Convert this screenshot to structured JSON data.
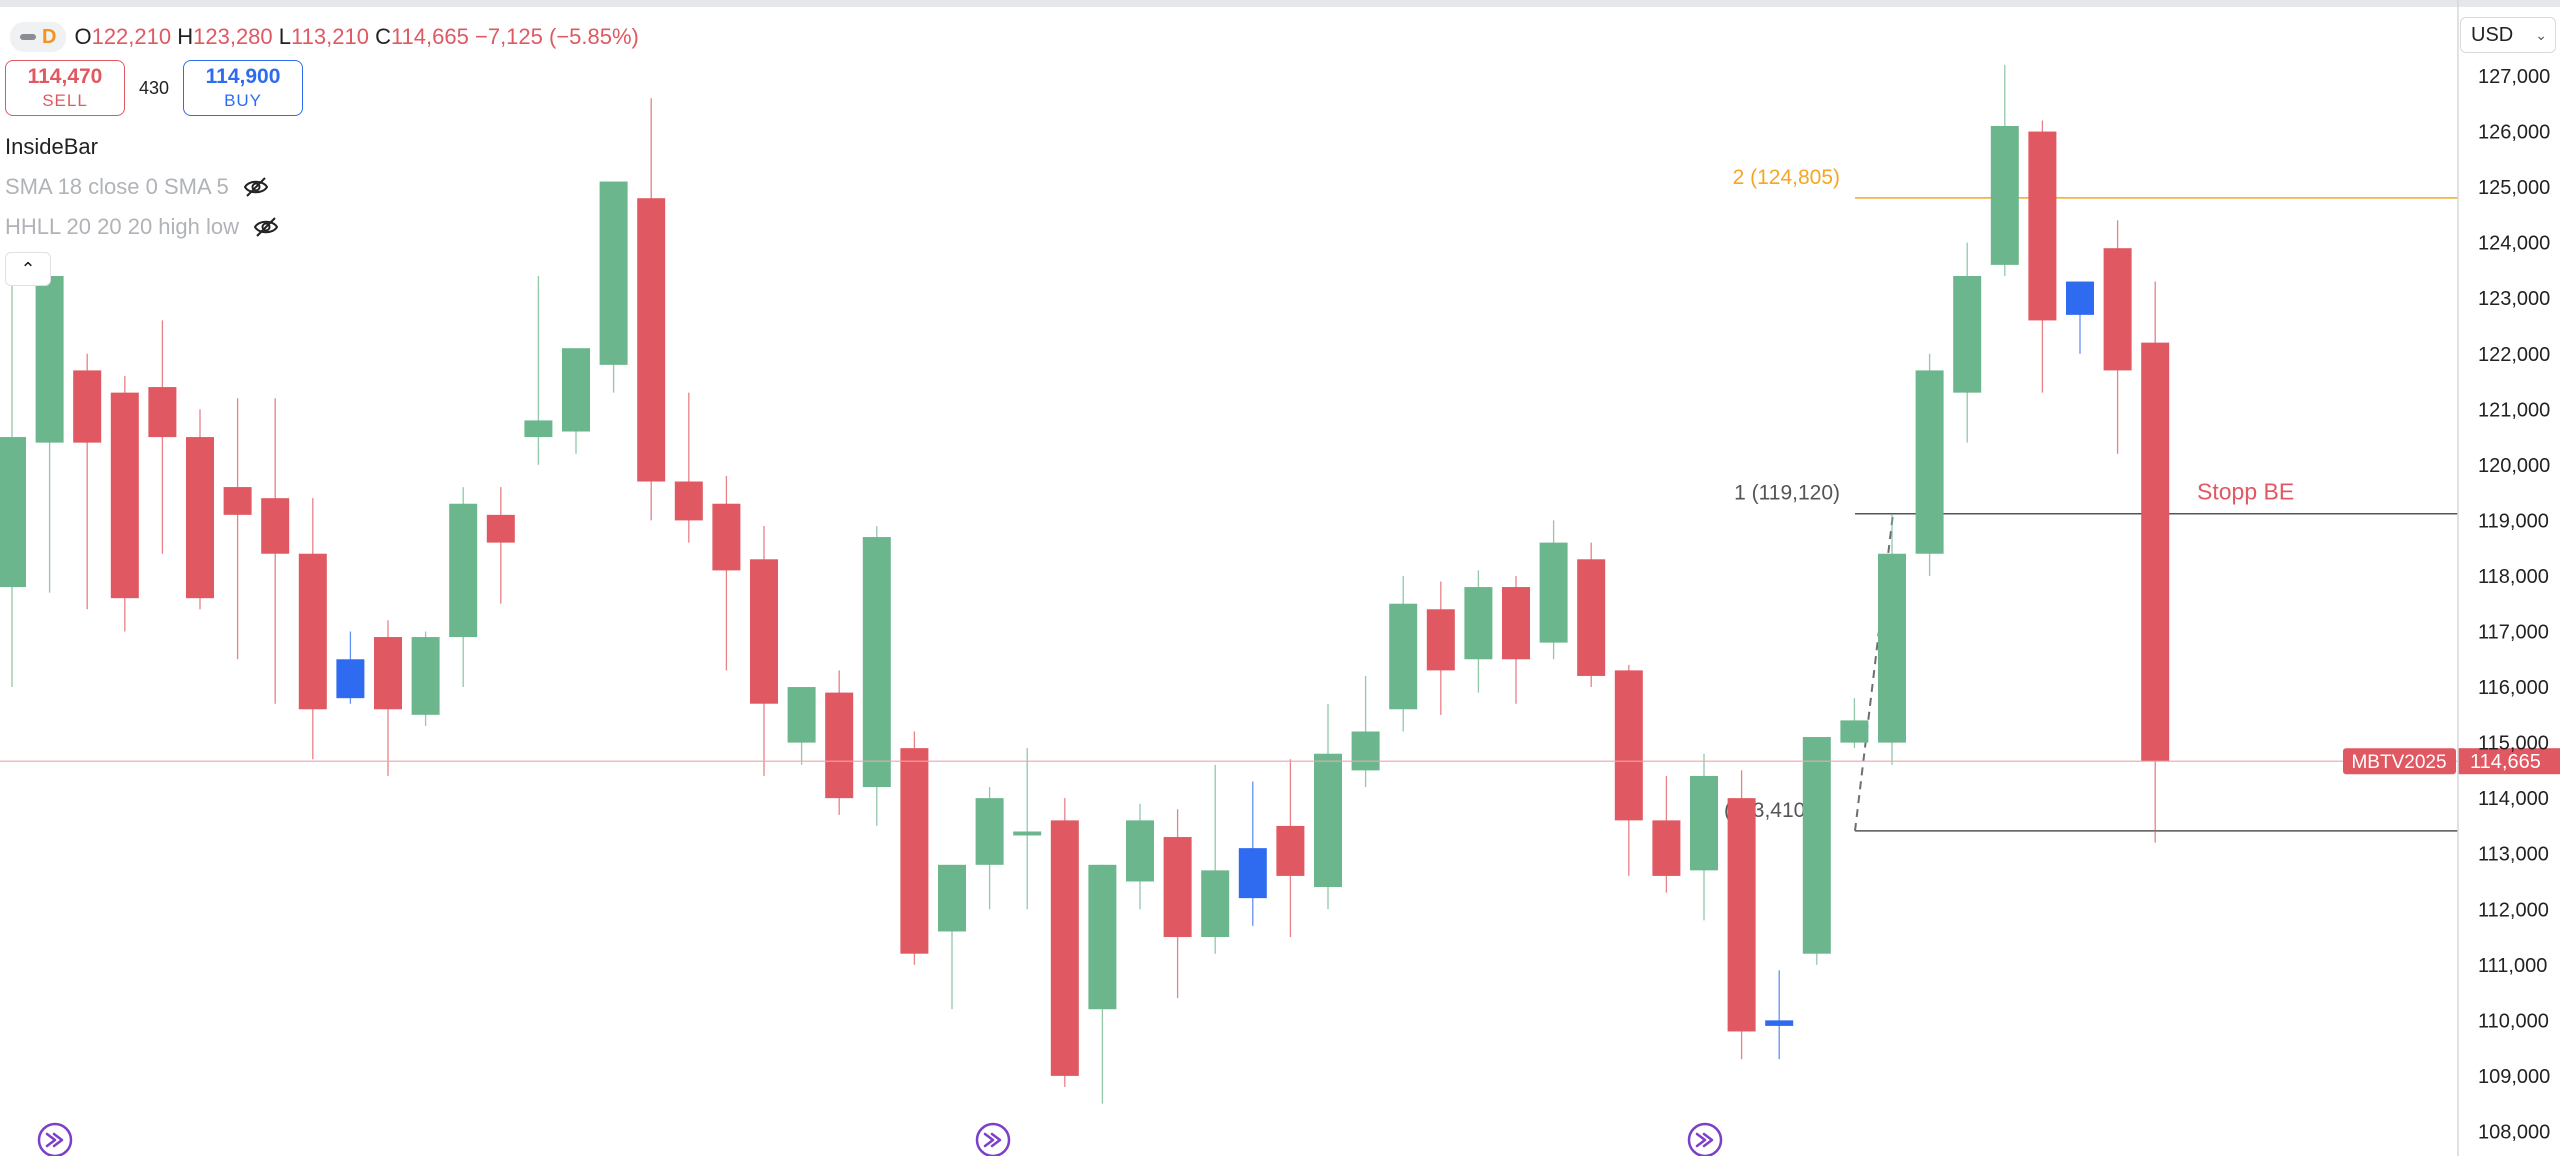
{
  "header": {
    "timeframe": "D",
    "open_label": "O",
    "open": "122,210",
    "high_label": "H",
    "high": "123,280",
    "low_label": "L",
    "low": "113,210",
    "close_label": "C",
    "close": "114,665",
    "change": "−7,125 (−5.85%)"
  },
  "trade": {
    "sell_price": "114,470",
    "sell_label": "SELL",
    "spread": "430",
    "buy_price": "114,900",
    "buy_label": "BUY"
  },
  "indicators": {
    "main": "InsideBar",
    "sma": "SMA 18 close 0 SMA 5",
    "hhll": "HHLL 20 20 20 high low"
  },
  "currency": "USD",
  "colors": {
    "up": "#6bb68c",
    "down": "#e05861",
    "inside_bar": "#2f6bf0",
    "level_orange": "#f5a623",
    "price_line": "#f2a4aa",
    "event_icon": "#7b3fc9"
  },
  "chart_data": {
    "type": "candlestick",
    "symbol_label": "MBTV2025",
    "last_price": 114665,
    "price_axis": {
      "min": 108000,
      "max": 127000,
      "step": 1000
    },
    "y_tick_labels": [
      "127,000",
      "126,000",
      "125,000",
      "124,000",
      "123,000",
      "122,000",
      "121,000",
      "120,000",
      "119,000",
      "118,000",
      "117,000",
      "116,000",
      "115,000",
      "114,000",
      "113,000",
      "112,000",
      "111,000",
      "110,000",
      "109,000",
      "108,000"
    ],
    "candles": [
      {
        "o": 117800,
        "h": 123300,
        "l": 116000,
        "c": 120500,
        "inside": false
      },
      {
        "o": 120400,
        "h": 123500,
        "l": 117700,
        "c": 123400,
        "inside": false
      },
      {
        "o": 121700,
        "h": 122000,
        "l": 117400,
        "c": 120400,
        "inside": false
      },
      {
        "o": 121300,
        "h": 121600,
        "l": 117000,
        "c": 117600,
        "inside": false
      },
      {
        "o": 121400,
        "h": 122600,
        "l": 118400,
        "c": 120500,
        "inside": false
      },
      {
        "o": 120500,
        "h": 121000,
        "l": 117400,
        "c": 117600,
        "inside": false
      },
      {
        "o": 119600,
        "h": 121200,
        "l": 116500,
        "c": 119100,
        "inside": false
      },
      {
        "o": 119400,
        "h": 121200,
        "l": 115700,
        "c": 118400,
        "inside": false
      },
      {
        "o": 118400,
        "h": 119400,
        "l": 114700,
        "c": 115600,
        "inside": false
      },
      {
        "o": 116500,
        "h": 117000,
        "l": 115700,
        "c": 115800,
        "inside": true
      },
      {
        "o": 116900,
        "h": 117200,
        "l": 114400,
        "c": 115600,
        "inside": false
      },
      {
        "o": 115500,
        "h": 117000,
        "l": 115300,
        "c": 116900,
        "inside": false
      },
      {
        "o": 116900,
        "h": 119600,
        "l": 116000,
        "c": 119300,
        "inside": false
      },
      {
        "o": 119100,
        "h": 119600,
        "l": 117500,
        "c": 118600,
        "inside": false
      },
      {
        "o": 120500,
        "h": 123400,
        "l": 120000,
        "c": 120800,
        "inside": false
      },
      {
        "o": 120600,
        "h": 122100,
        "l": 120200,
        "c": 122100,
        "inside": false
      },
      {
        "o": 121800,
        "h": 125100,
        "l": 121300,
        "c": 125100,
        "inside": false
      },
      {
        "o": 124800,
        "h": 126600,
        "l": 119000,
        "c": 119700,
        "inside": false
      },
      {
        "o": 119700,
        "h": 121300,
        "l": 118600,
        "c": 119000,
        "inside": false
      },
      {
        "o": 119300,
        "h": 119800,
        "l": 116300,
        "c": 118100,
        "inside": false
      },
      {
        "o": 118300,
        "h": 118900,
        "l": 114400,
        "c": 115700,
        "inside": false
      },
      {
        "o": 115000,
        "h": 116000,
        "l": 114600,
        "c": 116000,
        "inside": false
      },
      {
        "o": 115900,
        "h": 116300,
        "l": 113700,
        "c": 114000,
        "inside": false
      },
      {
        "o": 114200,
        "h": 118900,
        "l": 113500,
        "c": 118700,
        "inside": false
      },
      {
        "o": 114900,
        "h": 115200,
        "l": 111000,
        "c": 111200,
        "inside": false
      },
      {
        "o": 111600,
        "h": 112800,
        "l": 110200,
        "c": 112800,
        "inside": false
      },
      {
        "o": 112800,
        "h": 114200,
        "l": 112000,
        "c": 114000,
        "inside": false
      },
      {
        "o": 113400,
        "h": 114900,
        "l": 112000,
        "c": 113400,
        "inside": false
      },
      {
        "o": 113600,
        "h": 114000,
        "l": 108800,
        "c": 109000,
        "inside": false
      },
      {
        "o": 110200,
        "h": 112800,
        "l": 108500,
        "c": 112800,
        "inside": false
      },
      {
        "o": 112500,
        "h": 113900,
        "l": 112000,
        "c": 113600,
        "inside": false
      },
      {
        "o": 113300,
        "h": 113800,
        "l": 110400,
        "c": 111500,
        "inside": false
      },
      {
        "o": 111500,
        "h": 114600,
        "l": 111200,
        "c": 112700,
        "inside": false
      },
      {
        "o": 113100,
        "h": 114300,
        "l": 111700,
        "c": 112200,
        "inside": true
      },
      {
        "o": 113500,
        "h": 114700,
        "l": 111500,
        "c": 112600,
        "inside": false
      },
      {
        "o": 112400,
        "h": 115700,
        "l": 112000,
        "c": 114800,
        "inside": false
      },
      {
        "o": 114500,
        "h": 116200,
        "l": 114200,
        "c": 115200,
        "inside": false
      },
      {
        "o": 115600,
        "h": 118000,
        "l": 115200,
        "c": 117500,
        "inside": false
      },
      {
        "o": 117400,
        "h": 117900,
        "l": 115500,
        "c": 116300,
        "inside": false
      },
      {
        "o": 116500,
        "h": 118100,
        "l": 115900,
        "c": 117800,
        "inside": false
      },
      {
        "o": 117800,
        "h": 118000,
        "l": 115700,
        "c": 116500,
        "inside": false
      },
      {
        "o": 116800,
        "h": 119000,
        "l": 116500,
        "c": 118600,
        "inside": false
      },
      {
        "o": 118300,
        "h": 118600,
        "l": 116000,
        "c": 116200,
        "inside": false
      },
      {
        "o": 116300,
        "h": 116400,
        "l": 112600,
        "c": 113600,
        "inside": false
      },
      {
        "o": 113600,
        "h": 114400,
        "l": 112300,
        "c": 112600,
        "inside": false
      },
      {
        "o": 112700,
        "h": 114800,
        "l": 111800,
        "c": 114400,
        "inside": false
      },
      {
        "o": 114000,
        "h": 114500,
        "l": 109300,
        "c": 109800,
        "inside": false
      },
      {
        "o": 110000,
        "h": 110900,
        "l": 109300,
        "c": 109900,
        "inside": true
      },
      {
        "o": 111200,
        "h": 115100,
        "l": 111000,
        "c": 115100,
        "inside": false
      },
      {
        "o": 115000,
        "h": 115800,
        "l": 114900,
        "c": 115400,
        "inside": false
      },
      {
        "o": 115000,
        "h": 119100,
        "l": 114600,
        "c": 118400,
        "inside": false
      },
      {
        "o": 118400,
        "h": 122000,
        "l": 118000,
        "c": 121700,
        "inside": false
      },
      {
        "o": 121300,
        "h": 124000,
        "l": 120400,
        "c": 123400,
        "inside": false
      },
      {
        "o": 123600,
        "h": 127200,
        "l": 123400,
        "c": 126100,
        "inside": false
      },
      {
        "o": 126000,
        "h": 126200,
        "l": 121300,
        "c": 122600,
        "inside": false
      },
      {
        "o": 122700,
        "h": 123300,
        "l": 122000,
        "c": 123300,
        "inside": true
      },
      {
        "o": 123900,
        "h": 124400,
        "l": 120200,
        "c": 121700,
        "inside": false
      },
      {
        "o": 122200,
        "h": 123300,
        "l": 113200,
        "c": 114665,
        "inside": false
      }
    ],
    "levels": [
      {
        "price": 124805,
        "label": "2 (124,805)",
        "color": "#f5a623"
      },
      {
        "price": 119120,
        "label": "1 (119,120)",
        "color": "#555555"
      },
      {
        "price": 113410,
        "label": "(113,410)",
        "color": "#555555"
      }
    ],
    "annotation": "Stopp BE",
    "event_marker_count": 3
  }
}
